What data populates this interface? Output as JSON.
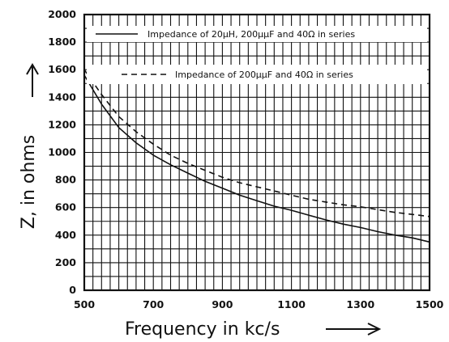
{
  "chart_data": {
    "type": "line",
    "xlabel": "Frequency in kc/s",
    "ylabel": "Z, in ohms",
    "xlim": [
      500,
      1500
    ],
    "ylim": [
      0,
      2000
    ],
    "x_ticks": [
      "500",
      "700",
      "900",
      "1100",
      "1300",
      "1500"
    ],
    "y_ticks": [
      "0",
      "200",
      "400",
      "600",
      "800",
      "1000",
      "1200",
      "1400",
      "1600",
      "1800",
      "2000"
    ],
    "grid": true,
    "legend_position": "top",
    "series": [
      {
        "name": "Impedance of 20μH, 200μμF and 40Ω in series",
        "style": "solid",
        "x": [
          500,
          550,
          600,
          650,
          700,
          750,
          800,
          850,
          900,
          950,
          1000,
          1050,
          1100,
          1150,
          1200,
          1250,
          1300,
          1350,
          1400,
          1450,
          1500
        ],
        "y": [
          1560,
          1350,
          1180,
          1070,
          980,
          910,
          850,
          790,
          740,
          690,
          650,
          610,
          580,
          545,
          510,
          480,
          455,
          425,
          400,
          380,
          350
        ]
      },
      {
        "name": "Impedance of 200μμF and 40Ω in series",
        "style": "dashed",
        "x": [
          500,
          550,
          600,
          650,
          700,
          750,
          800,
          850,
          900,
          950,
          1000,
          1050,
          1100,
          1150,
          1200,
          1250,
          1300,
          1350,
          1400,
          1450,
          1500
        ],
        "y": [
          1600,
          1420,
          1260,
          1150,
          1060,
          980,
          920,
          870,
          820,
          780,
          750,
          720,
          690,
          660,
          640,
          620,
          605,
          585,
          565,
          550,
          535
        ]
      }
    ]
  }
}
